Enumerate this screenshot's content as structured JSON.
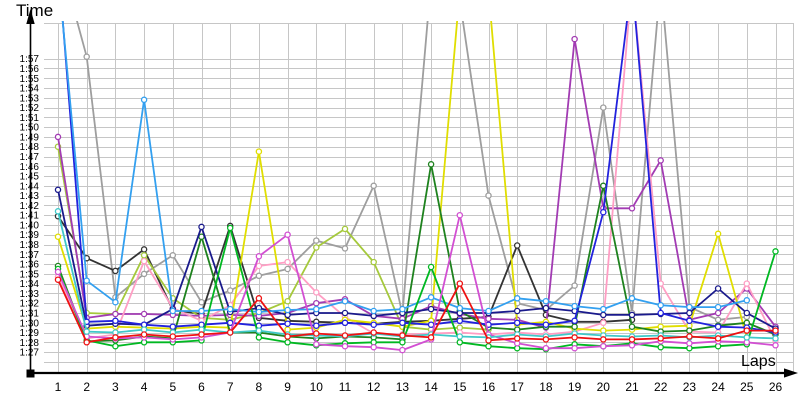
{
  "chart": {
    "y_axis_title": "Time",
    "x_axis_title": "Laps"
  },
  "chart_data": {
    "type": "line",
    "title": "",
    "xlabel": "Laps",
    "ylabel": "Time",
    "x": [
      1,
      2,
      3,
      4,
      5,
      6,
      7,
      8,
      9,
      10,
      11,
      12,
      13,
      14,
      15,
      16,
      17,
      18,
      19,
      20,
      21,
      22,
      23,
      24,
      25,
      26
    ],
    "y_unit": "m:ss (values stored as total seconds)",
    "ylim_seconds": [
      86,
      121
    ],
    "y_tick_seconds_min": 87,
    "y_tick_seconds_max": 117,
    "y_tick_labels": [
      "1:27",
      "1:28",
      "1:29",
      "1:30",
      "1:31",
      "1:32",
      "1:33",
      "1:34",
      "1:35",
      "1:36",
      "1:37",
      "1:38",
      "1:39",
      "1:40",
      "1:41",
      "1:42",
      "1:43",
      "1:44",
      "1:45",
      "1:46",
      "1:47",
      "1:48",
      "1:49",
      "1:50",
      "1:51",
      "1:52",
      "1:53",
      "1:54",
      "1:55",
      "1:56",
      "1:57"
    ],
    "grid": true,
    "legend": "none",
    "marker": "open-circle",
    "series": [
      {
        "name": "gray",
        "color": "#9E9E9E",
        "values": [
          128,
          117.2,
          92.6,
          95.0,
          96.9,
          92.1,
          93.3,
          94.8,
          95.5,
          98.4,
          97.6,
          104.0,
          90.9,
          125,
          123,
          103.0,
          92.0,
          91.3,
          93.8,
          112.0,
          91.0,
          125,
          91.6,
          90.3,
          90.6,
          null
        ]
      },
      {
        "name": "black",
        "color": "#333333",
        "values": [
          100.9,
          96.6,
          95.3,
          97.5,
          91.3,
          90.9,
          99.9,
          90.5,
          90.2,
          90.1,
          90.0,
          89.9,
          90.1,
          90.2,
          90.4,
          90.6,
          97.9,
          90.8,
          90.1,
          90.1,
          90.3,
          null,
          null,
          null,
          null,
          null
        ]
      },
      {
        "name": "yellowgreen",
        "color": "#A5C93C",
        "values": [
          108.0,
          91.0,
          90.9,
          96.9,
          92.5,
          90.5,
          90.3,
          91.0,
          92.2,
          97.7,
          99.6,
          96.2,
          89.6,
          89.3,
          89.5,
          89.3,
          null,
          null,
          null,
          null,
          null,
          null,
          null,
          null,
          null,
          null
        ]
      },
      {
        "name": "purple",
        "color": "#A23BB3",
        "values": [
          109.0,
          90.5,
          90.9,
          90.9,
          90.8,
          90.7,
          90.8,
          90.7,
          91.0,
          92.0,
          92.4,
          90.7,
          90.4,
          91.7,
          90.9,
          90.4,
          90.3,
          89.5,
          119.0,
          101.7,
          101.7,
          106.6,
          90.3,
          91.0,
          93.5,
          89.6
        ]
      },
      {
        "name": "pink",
        "color": "#FF9EC4",
        "values": [
          94.7,
          88.4,
          88.8,
          96.3,
          91.5,
          90.2,
          91.8,
          95.8,
          96.2,
          93.1,
          90.6,
          88.9,
          88.8,
          88.9,
          89.0,
          88.8,
          89.0,
          88.8,
          89.1,
          90.0,
          125,
          94.0,
          89.1,
          89.0,
          94.0,
          88.2
        ]
      },
      {
        "name": "yellow",
        "color": "#E0DE00",
        "values": [
          98.8,
          89.4,
          89.6,
          89.5,
          89.4,
          89.6,
          89.5,
          107.5,
          89.3,
          89.5,
          90.3,
          90.0,
          89.6,
          90.2,
          124,
          124,
          89.8,
          90.1,
          89.4,
          89.2,
          89.3,
          89.6,
          89.7,
          99.1,
          88.5,
          null
        ]
      },
      {
        "name": "forest-green",
        "color": "#1E821E",
        "values": [
          95.8,
          88.1,
          88.2,
          88.6,
          88.4,
          98.8,
          89.0,
          89.0,
          88.6,
          88.4,
          88.6,
          88.5,
          88.3,
          106.2,
          91.2,
          89.5,
          89.3,
          89.6,
          89.6,
          104.0,
          89.6,
          89.1,
          89.2,
          89.7,
          90.0,
          88.8
        ]
      },
      {
        "name": "navy",
        "color": "#1A1A8C",
        "values": [
          103.6,
          89.7,
          89.9,
          89.8,
          91.4,
          99.8,
          91.1,
          91.5,
          90.8,
          91.0,
          91.0,
          90.7,
          91.0,
          91.4,
          91.0,
          91.0,
          91.2,
          91.5,
          91.2,
          90.8,
          90.8,
          90.9,
          91.0,
          93.5,
          91.0,
          89.4
        ]
      },
      {
        "name": "blue",
        "color": "#2222DD",
        "values": [
          127,
          90.1,
          90.2,
          89.8,
          89.6,
          89.8,
          90.0,
          89.7,
          89.9,
          89.7,
          90.0,
          89.8,
          90.0,
          89.8,
          90.2,
          89.8,
          90.0,
          89.8,
          90.2,
          101.3,
          125,
          91.0,
          90.2,
          89.6,
          89.5,
          89.0
        ]
      },
      {
        "name": "dodger-blue",
        "color": "#33A0F0",
        "values": [
          126,
          94.3,
          92.1,
          112.8,
          91.2,
          91.2,
          91.4,
          91.1,
          91.3,
          91.4,
          92.2,
          91.2,
          91.4,
          92.6,
          91.5,
          91.2,
          92.5,
          92.2,
          91.7,
          91.4,
          92.5,
          91.8,
          91.6,
          91.6,
          92.3,
          null
        ]
      },
      {
        "name": "green",
        "color": "#00B822",
        "values": [
          95.5,
          88.2,
          87.6,
          88.0,
          88.0,
          88.2,
          99.7,
          88.5,
          88.0,
          87.7,
          87.9,
          88.0,
          88.0,
          95.7,
          88.0,
          87.6,
          87.4,
          87.3,
          87.8,
          87.6,
          87.9,
          87.5,
          87.4,
          87.6,
          87.8,
          97.3
        ]
      },
      {
        "name": "violet",
        "color": "#D24FD2",
        "values": [
          95.2,
          88.6,
          88.4,
          88.5,
          88.3,
          88.5,
          89.0,
          96.8,
          99.0,
          87.8,
          87.6,
          87.5,
          87.2,
          88.3,
          101.0,
          88.8,
          87.9,
          87.4,
          87.4,
          87.6,
          87.7,
          88.1,
          87.9,
          88.1,
          88.0,
          87.7
        ]
      },
      {
        "name": "cyan",
        "color": "#3FC8C8",
        "values": [
          101.4,
          89.1,
          89.0,
          89.3,
          89.0,
          89.3,
          89.0,
          89.2,
          88.8,
          88.7,
          88.6,
          88.9,
          88.6,
          88.8,
          88.6,
          88.5,
          88.8,
          88.6,
          88.9,
          88.7,
          88.6,
          88.7,
          88.5,
          88.7,
          88.5,
          88.4
        ]
      },
      {
        "name": "red",
        "color": "#EE1111",
        "values": [
          94.4,
          88.0,
          88.5,
          88.8,
          88.6,
          88.8,
          89.0,
          92.5,
          88.6,
          88.9,
          88.7,
          89.0,
          88.7,
          88.5,
          94.0,
          88.2,
          88.4,
          88.3,
          88.5,
          88.3,
          88.3,
          88.4,
          88.6,
          88.4,
          89.2,
          89.2
        ]
      }
    ]
  },
  "style": {
    "grid_color": "#C6C6C6",
    "axis_color": "#000000",
    "background": "#FFFFFF"
  }
}
